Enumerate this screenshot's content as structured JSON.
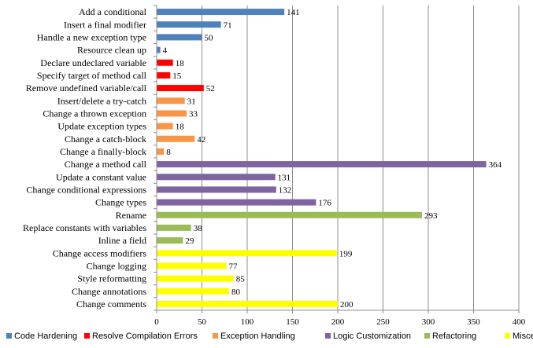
{
  "chart_data": {
    "type": "bar",
    "orientation": "horizontal",
    "title": "",
    "xlabel": "",
    "ylabel": "",
    "xlim": [
      0,
      400
    ],
    "x_ticks": [
      0,
      50,
      100,
      150,
      200,
      250,
      300,
      350,
      400
    ],
    "grid": "vertical",
    "legend_position": "bottom",
    "colors": {
      "Code Hardening": "#4F81BD",
      "Resolve Compilation Errors": "#FF0000",
      "Exception Handling": "#F79646",
      "Logic Customization": "#8064A2",
      "Refactoring": "#9BBB59",
      "Miscellaneous": "#FFFF00"
    },
    "series": [
      {
        "name": "Code Hardening"
      },
      {
        "name": "Resolve Compilation Errors"
      },
      {
        "name": "Exception Handling"
      },
      {
        "name": "Logic Customization"
      },
      {
        "name": "Refactoring"
      },
      {
        "name": "Miscellaneous"
      }
    ],
    "bars": [
      {
        "label": "Add a conditional",
        "value": 141,
        "series": "Code Hardening"
      },
      {
        "label": "Insert a final modifier",
        "value": 71,
        "series": "Code Hardening"
      },
      {
        "label": "Handle a new exception type",
        "value": 50,
        "series": "Code Hardening"
      },
      {
        "label": "Resource clean up",
        "value": 4,
        "series": "Code Hardening"
      },
      {
        "label": "Declare undeclared variable",
        "value": 18,
        "series": "Resolve Compilation Errors"
      },
      {
        "label": "Specify target of method call",
        "value": 15,
        "series": "Resolve Compilation Errors"
      },
      {
        "label": "Remove undefined variable/call",
        "value": 52,
        "series": "Resolve Compilation Errors"
      },
      {
        "label": "Insert/delete a try-catch",
        "value": 31,
        "series": "Exception Handling"
      },
      {
        "label": "Change a thrown exception",
        "value": 33,
        "series": "Exception Handling"
      },
      {
        "label": "Update exception types",
        "value": 18,
        "series": "Exception Handling"
      },
      {
        "label": "Change a catch-block",
        "value": 42,
        "series": "Exception Handling"
      },
      {
        "label": "Change a finally-block",
        "value": 8,
        "series": "Exception Handling"
      },
      {
        "label": "Change a method call",
        "value": 364,
        "series": "Logic Customization"
      },
      {
        "label": "Update a constant value",
        "value": 131,
        "series": "Logic Customization"
      },
      {
        "label": "Change conditional expressions",
        "value": 132,
        "series": "Logic Customization"
      },
      {
        "label": "Change types",
        "value": 176,
        "series": "Logic Customization"
      },
      {
        "label": "Rename",
        "value": 293,
        "series": "Refactoring"
      },
      {
        "label": "Replace constants with variables",
        "value": 38,
        "series": "Refactoring"
      },
      {
        "label": "Inline a field",
        "value": 29,
        "series": "Refactoring"
      },
      {
        "label": "Change access modifiers",
        "value": 199,
        "series": "Miscellaneous"
      },
      {
        "label": "Change logging",
        "value": 77,
        "series": "Miscellaneous"
      },
      {
        "label": "Style reformatting",
        "value": 85,
        "series": "Miscellaneous"
      },
      {
        "label": "Change annotations",
        "value": 80,
        "series": "Miscellaneous"
      },
      {
        "label": "Change comments",
        "value": 200,
        "series": "Miscellaneous"
      }
    ]
  }
}
